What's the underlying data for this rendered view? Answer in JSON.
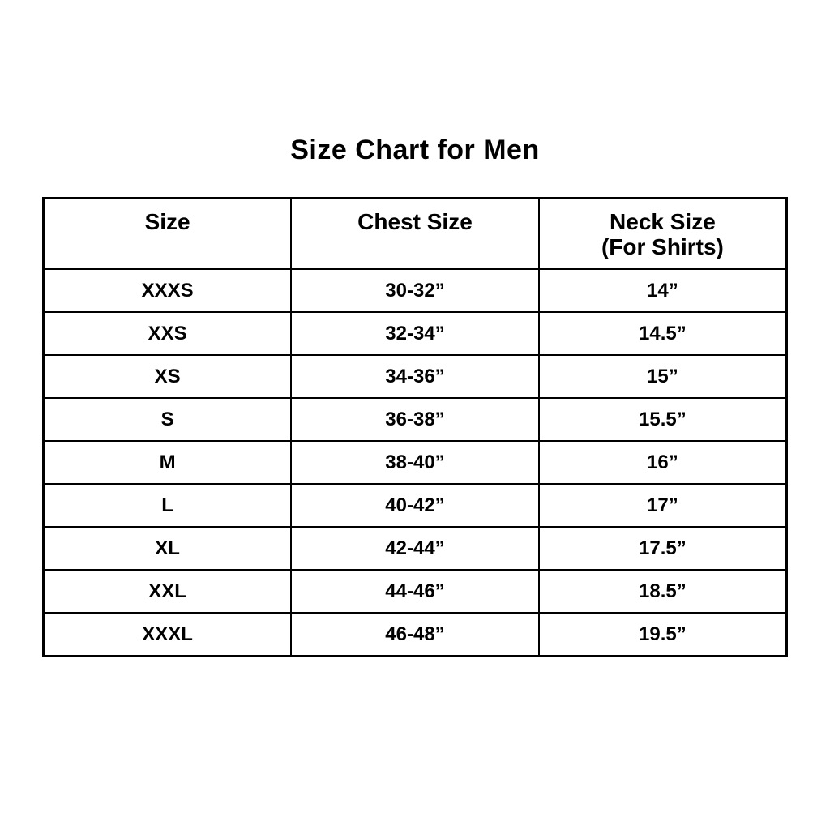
{
  "colors": {
    "background": "#ffffff",
    "text": "#000000",
    "border": "#000000"
  },
  "chart_data": {
    "type": "table",
    "title": "Size Chart for Men",
    "columns": [
      {
        "label": "Size",
        "sublabel": ""
      },
      {
        "label": "Chest Size",
        "sublabel": ""
      },
      {
        "label": "Neck Size",
        "sublabel": "(For Shirts)"
      }
    ],
    "rows": [
      [
        "XXXS",
        "30-32”",
        "14”"
      ],
      [
        "XXS",
        "32-34”",
        "14.5”"
      ],
      [
        "XS",
        "34-36”",
        "15”"
      ],
      [
        "S",
        "36-38”",
        "15.5”"
      ],
      [
        "M",
        "38-40”",
        "16”"
      ],
      [
        "L",
        "40-42”",
        "17”"
      ],
      [
        "XL",
        "42-44”",
        "17.5”"
      ],
      [
        "XXL",
        "44-46”",
        "18.5”"
      ],
      [
        "XXXL",
        "46-48”",
        "19.5”"
      ]
    ]
  }
}
